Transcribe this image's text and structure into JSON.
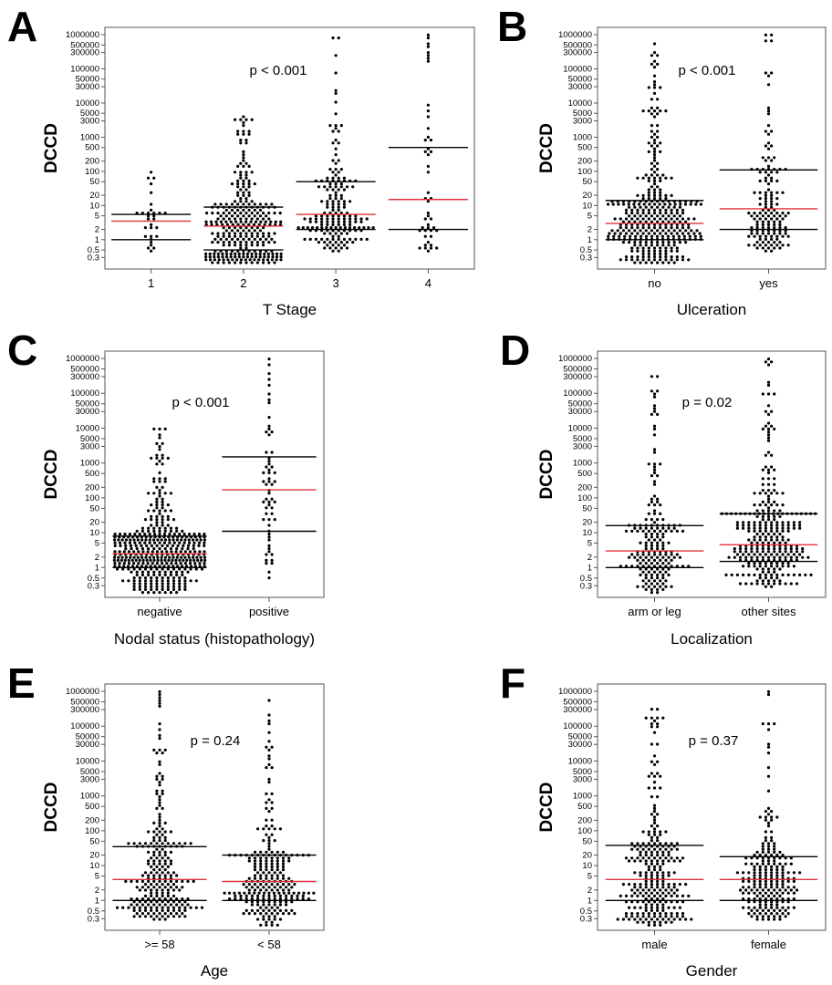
{
  "figure": {
    "colors": {
      "median": "#e0303a",
      "quartile": "#000000",
      "dot": "#000000"
    },
    "y_ticks": [
      "1000000",
      "500000",
      "300000",
      "100000",
      "50000",
      "30000",
      "10000",
      "5000",
      "3000",
      "1000",
      "500",
      "200",
      "100",
      "50",
      "20",
      "10",
      "5",
      "2",
      "1",
      "0.5",
      "0.3"
    ],
    "y_tick_values": [
      1000000,
      500000,
      300000,
      100000,
      50000,
      30000,
      10000,
      5000,
      3000,
      1000,
      500,
      200,
      100,
      50,
      20,
      10,
      5,
      2,
      1,
      0.5,
      0.3
    ]
  },
  "chart_data": [
    {
      "panel": "A",
      "type": "scatter",
      "ylabel": "DCCD",
      "xlabel": "T Stage",
      "y_scale": "log",
      "ylim": [
        0.2,
        1000000
      ],
      "annotation": "p < 0.001",
      "categories": [
        "1",
        "2",
        "3",
        "4"
      ],
      "groups": [
        {
          "category": "1",
          "median": 3.5,
          "q1": 1,
          "q3": 5.5,
          "max": 90,
          "min": 0.5,
          "n": 28
        },
        {
          "category": "2",
          "median": 2.5,
          "q1": 0.5,
          "q3": 9,
          "max": 4000,
          "min": 0.2,
          "n": 300
        },
        {
          "category": "3",
          "median": 5.5,
          "q1": 2,
          "q3": 50,
          "max": 800000,
          "min": 0.5,
          "n": 180
        },
        {
          "category": "4",
          "median": 15,
          "q1": 2,
          "q3": 500,
          "max": 1000000,
          "min": 0.5,
          "n": 45
        }
      ]
    },
    {
      "panel": "B",
      "type": "scatter",
      "ylabel": "DCCD",
      "xlabel": "Ulceration",
      "y_scale": "log",
      "ylim": [
        0.2,
        1000000
      ],
      "annotation": "p < 0.001",
      "categories": [
        "no",
        "yes"
      ],
      "groups": [
        {
          "category": "no",
          "median": 3,
          "q1": 1,
          "q3": 14,
          "max": 500000,
          "min": 0.2,
          "n": 360
        },
        {
          "category": "yes",
          "median": 8,
          "q1": 2,
          "q3": 110,
          "max": 1000000,
          "min": 0.5,
          "n": 150
        }
      ]
    },
    {
      "panel": "C",
      "type": "scatter",
      "ylabel": "DCCD",
      "xlabel": "Nodal status (histopathology)",
      "y_scale": "log",
      "ylim": [
        0.2,
        1000000
      ],
      "annotation": "p < 0.001",
      "categories": [
        "negative",
        "positive"
      ],
      "groups": [
        {
          "category": "negative",
          "median": 2.5,
          "q1": 1,
          "q3": 8,
          "max": 10000,
          "min": 0.2,
          "n": 420
        },
        {
          "category": "positive",
          "median": 170,
          "q1": 11,
          "q3": 1500,
          "max": 1000000,
          "min": 0.5,
          "n": 60
        }
      ]
    },
    {
      "panel": "D",
      "type": "scatter",
      "ylabel": "DCCD",
      "xlabel": "Localization",
      "y_scale": "log",
      "ylim": [
        0.2,
        1000000
      ],
      "annotation": "p = 0.02",
      "categories": [
        "arm or leg",
        "other sites"
      ],
      "groups": [
        {
          "category": "arm or leg",
          "median": 3,
          "q1": 1,
          "q3": 16,
          "max": 300000,
          "min": 0.2,
          "n": 190
        },
        {
          "category": "other sites",
          "median": 4.5,
          "q1": 1.5,
          "q3": 35,
          "max": 1000000,
          "min": 0.3,
          "n": 300
        }
      ]
    },
    {
      "panel": "E",
      "type": "scatter",
      "ylabel": "DCCD",
      "xlabel": "Age",
      "y_scale": "log",
      "ylim": [
        0.2,
        1000000
      ],
      "annotation": "p = 0.24",
      "categories": [
        ">= 58",
        "< 58"
      ],
      "groups": [
        {
          "category": ">= 58",
          "median": 4,
          "q1": 1,
          "q3": 35,
          "max": 1000000,
          "min": 0.3,
          "n": 250
        },
        {
          "category": "< 58",
          "median": 3.5,
          "q1": 1,
          "q3": 20,
          "max": 500000,
          "min": 0.2,
          "n": 250
        }
      ]
    },
    {
      "panel": "F",
      "type": "scatter",
      "ylabel": "DCCD",
      "xlabel": "Gender",
      "y_scale": "log",
      "ylim": [
        0.2,
        1000000
      ],
      "annotation": "p = 0.37",
      "categories": [
        "male",
        "female"
      ],
      "groups": [
        {
          "category": "male",
          "median": 4,
          "q1": 1,
          "q3": 38,
          "max": 300000,
          "min": 0.2,
          "n": 270
        },
        {
          "category": "female",
          "median": 4,
          "q1": 1,
          "q3": 18,
          "max": 1000000,
          "min": 0.3,
          "n": 220
        }
      ]
    }
  ]
}
